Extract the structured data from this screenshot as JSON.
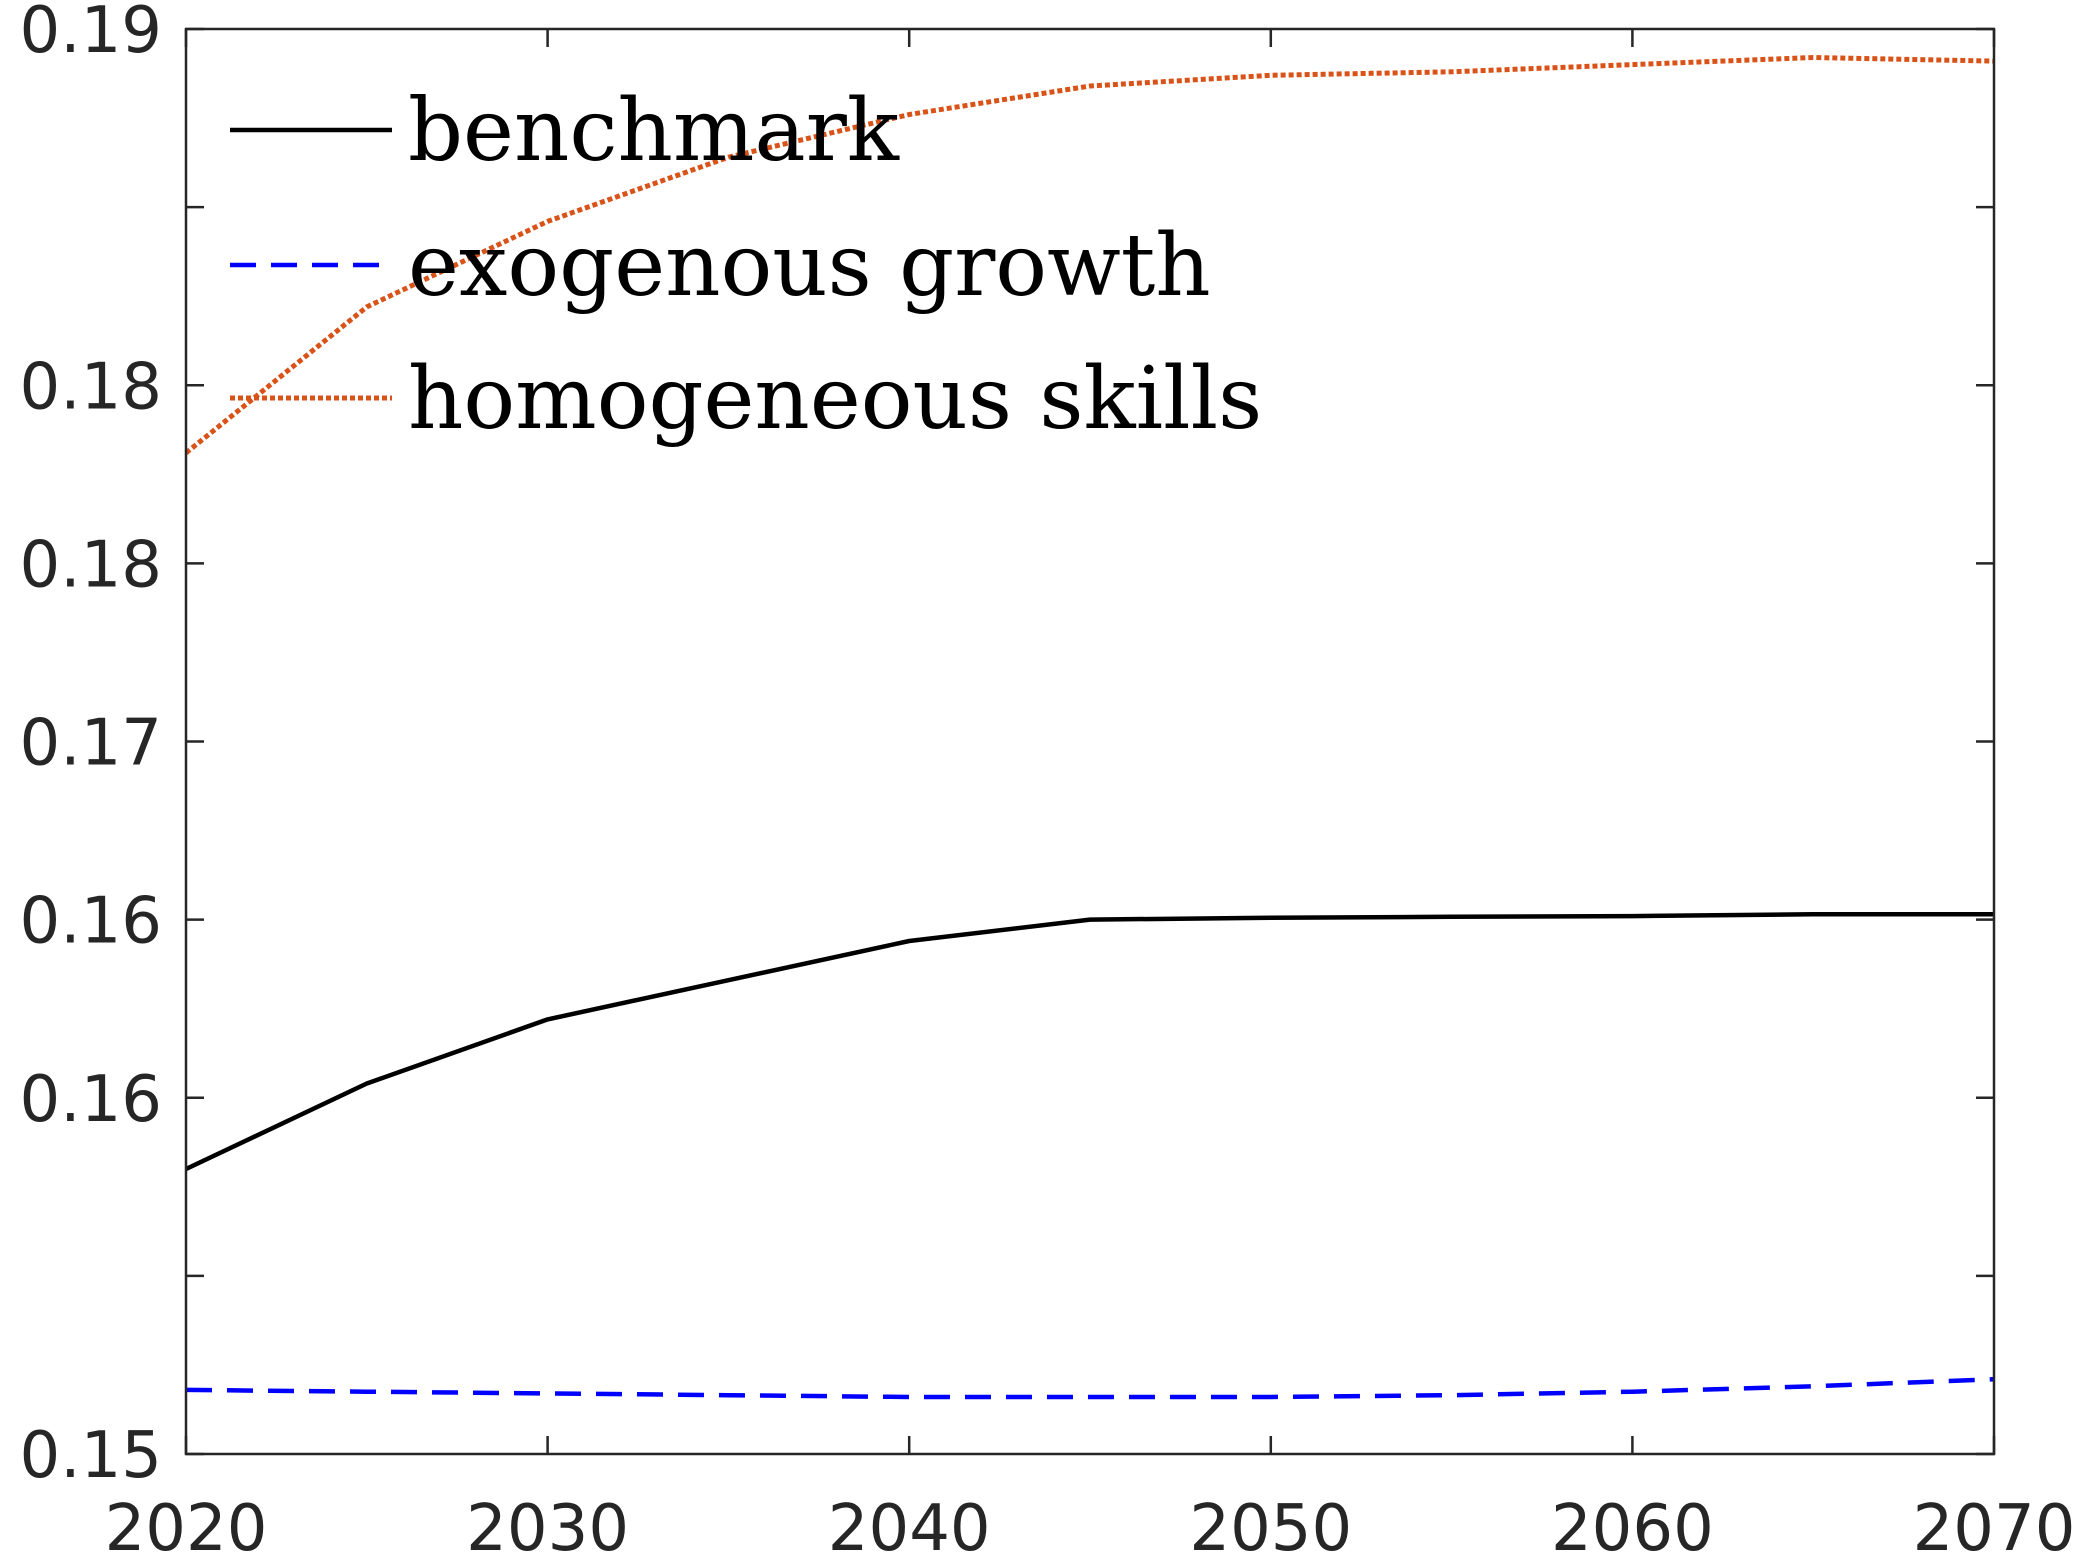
{
  "chart_data": {
    "type": "line",
    "title": "",
    "xlabel": "",
    "ylabel": "",
    "xlim": [
      2020,
      2070
    ],
    "ylim": [
      0.15,
      0.19
    ],
    "x_ticks": [
      2020,
      2030,
      2040,
      2050,
      2060,
      2070
    ],
    "x_tick_labels": [
      "2020",
      "2030",
      "2040",
      "2050",
      "2060",
      "2070"
    ],
    "y_ticks": [
      0.15,
      0.155,
      0.16,
      0.165,
      0.17,
      0.175,
      0.18,
      0.185,
      0.19
    ],
    "y_tick_labels": [
      "0.15",
      "",
      "0.16",
      "0.16",
      "0.17",
      "0.18",
      "0.18",
      "",
      "0.19"
    ],
    "grid": false,
    "legend_position": "top-left",
    "x": [
      2020,
      2025,
      2030,
      2035,
      2040,
      2045,
      2050,
      2055,
      2060,
      2065,
      2070
    ],
    "series": [
      {
        "name": "benchmark",
        "color": "#000000",
        "style": "solid",
        "values": [
          0.158,
          0.1604,
          0.1622,
          0.1633,
          0.1644,
          0.165,
          0.16505,
          0.16508,
          0.1651,
          0.16515,
          0.16515
        ]
      },
      {
        "name": "exogenous growth",
        "color": "#0000ff",
        "style": "dashed",
        "values": [
          0.1518,
          0.15175,
          0.1517,
          0.15165,
          0.1516,
          0.1516,
          0.1516,
          0.15165,
          0.15175,
          0.1519,
          0.1521
        ]
      },
      {
        "name": "homogeneous skills",
        "color": "#d95319",
        "style": "dotted",
        "values": [
          0.1781,
          0.1822,
          0.1846,
          0.1864,
          0.1876,
          0.1884,
          0.1887,
          0.1888,
          0.189,
          0.1892,
          0.1891
        ]
      }
    ]
  }
}
